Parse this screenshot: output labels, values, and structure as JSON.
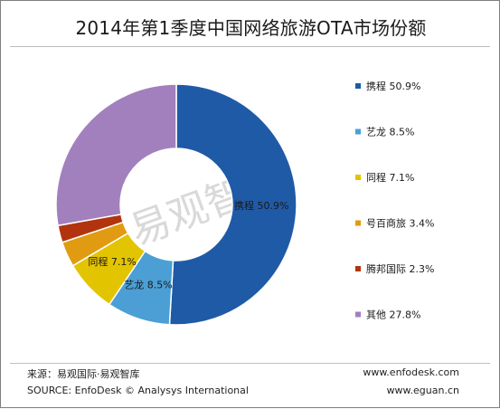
{
  "header": {
    "title": "2014年第1季度中国网络旅游OTA市场份额"
  },
  "chart_data": {
    "type": "pie",
    "title": "2014年第1季度中国网络旅游OTA市场份额",
    "donut": true,
    "categories": [
      "携程",
      "艺龙",
      "同程",
      "号百商旅",
      "腾邦国际",
      "其他"
    ],
    "values": [
      50.9,
      8.5,
      7.1,
      3.4,
      2.3,
      27.8
    ],
    "unit": "%",
    "legend_labels": [
      "携程 50.9%",
      "艺龙 8.5%",
      "同程 7.1%",
      "号百商旅 3.4%",
      "腾邦国际 2.3%",
      "其他 27.8%"
    ],
    "data_labels": [
      "携程 50.9%",
      "艺龙 8.5%",
      "同程 7.1%",
      "",
      "",
      ""
    ],
    "colors": [
      "#1f5aa6",
      "#4b9fd5",
      "#e3c400",
      "#e09b12",
      "#b2340e",
      "#a280bd"
    ],
    "legend_position": "right"
  },
  "watermark": "易观智库",
  "footer": {
    "source_cn": "来源：易观国际·易观智库",
    "source_en": "SOURCE: EnfoDesk © Analysys International",
    "site1": "www.enfodesk.com",
    "site2": "www.eguan.cn"
  }
}
